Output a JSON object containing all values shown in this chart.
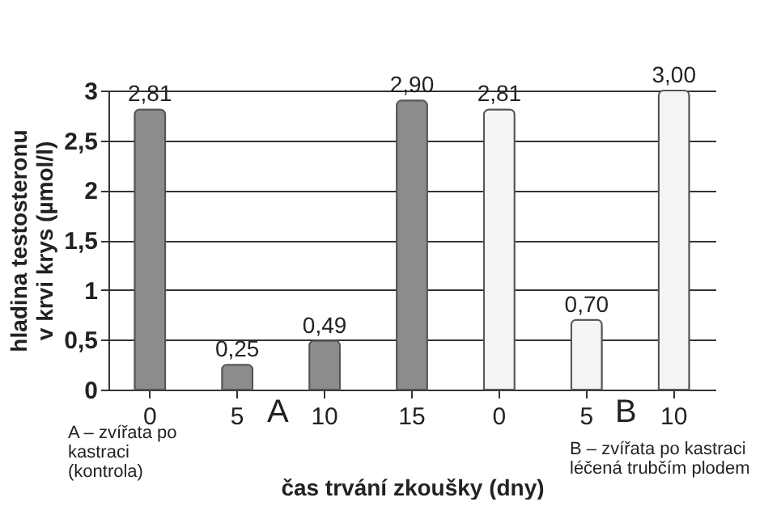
{
  "chart_data": {
    "type": "bar",
    "categories": [
      "0",
      "5",
      "10",
      "15",
      "0",
      "5",
      "10"
    ],
    "values": [
      2.81,
      0.25,
      0.49,
      2.9,
      2.81,
      0.7,
      3.0
    ],
    "colors": [
      "#8c8c8c",
      "#8c8c8c",
      "#8c8c8c",
      "#8c8c8c",
      "#f4f4f4",
      "#f4f4f4",
      "#f4f4f4"
    ],
    "value_labels": [
      "2,81",
      "0,25",
      "0,49",
      "2,90",
      "2,81",
      "0,70",
      "3,00"
    ],
    "ylabel": "hladina testosteronu v krvi krys (µmol/l)",
    "xlabel": "čas trvání zkoušky (dny)",
    "ylim": [
      0,
      3
    ],
    "yticks": [
      0,
      {
        "value": 0.5,
        "label": "0,5"
      },
      1,
      {
        "value": 1.5,
        "label": "1,5"
      },
      2,
      {
        "value": 2.5,
        "label": "2,5"
      },
      3
    ],
    "grid": "y",
    "annotations": [
      "A",
      "B",
      "A – zvířata po kastraci (kontrola)",
      "B – zvířata po kastraci léčená trubčím plodem"
    ]
  }
}
